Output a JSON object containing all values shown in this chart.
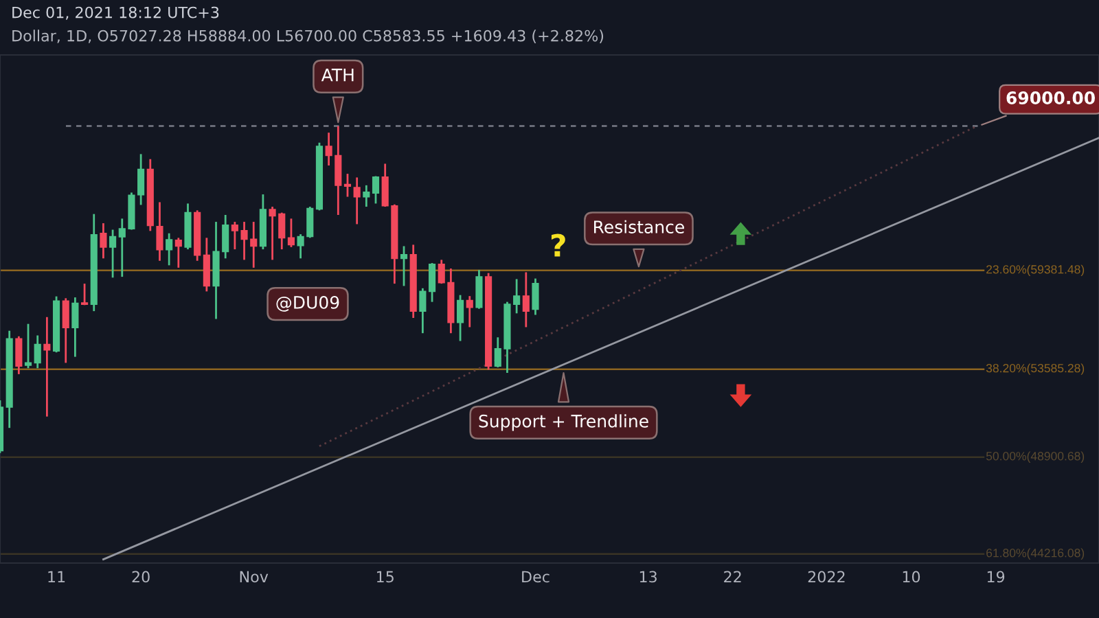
{
  "chart_data": {
    "type": "candlestick",
    "title": "Dec 01, 2021 18:12 UTC+3",
    "subtitle": "Dollar, 1D, O57027.28 H58884.00 L56700.00 C58583.55 +1609.43 (+2.82%)",
    "x": [
      "2021-10-05",
      "2021-10-06",
      "2021-10-07",
      "2021-10-08",
      "2021-10-09",
      "2021-10-10",
      "2021-10-11",
      "2021-10-12",
      "2021-10-13",
      "2021-10-14",
      "2021-10-15",
      "2021-10-16",
      "2021-10-17",
      "2021-10-18",
      "2021-10-19",
      "2021-10-20",
      "2021-10-21",
      "2021-10-22",
      "2021-10-23",
      "2021-10-24",
      "2021-10-25",
      "2021-10-26",
      "2021-10-27",
      "2021-10-28",
      "2021-10-29",
      "2021-10-30",
      "2021-10-31",
      "2021-11-01",
      "2021-11-02",
      "2021-11-03",
      "2021-11-04",
      "2021-11-05",
      "2021-11-06",
      "2021-11-07",
      "2021-11-08",
      "2021-11-09",
      "2021-11-10",
      "2021-11-11",
      "2021-11-12",
      "2021-11-13",
      "2021-11-14",
      "2021-11-15",
      "2021-11-16",
      "2021-11-17",
      "2021-11-18",
      "2021-11-19",
      "2021-11-20",
      "2021-11-21",
      "2021-11-22",
      "2021-11-23",
      "2021-11-24",
      "2021-11-25",
      "2021-11-26",
      "2021-11-27",
      "2021-11-28",
      "2021-11-29",
      "2021-11-30",
      "2021-12-01"
    ],
    "ohlc": [
      [
        49230,
        51880,
        49110,
        51510
      ],
      [
        51510,
        55770,
        50410,
        55310
      ],
      [
        55310,
        55450,
        53310,
        53760
      ],
      [
        53810,
        56170,
        53640,
        53940
      ],
      [
        53940,
        55500,
        53640,
        54980
      ],
      [
        54980,
        56570,
        51010,
        54670
      ],
      [
        54610,
        57800,
        54530,
        57520
      ],
      [
        57520,
        57690,
        53940,
        55950
      ],
      [
        55950,
        57740,
        54280,
        57390
      ],
      [
        57410,
        58570,
        57280,
        57330
      ],
      [
        57330,
        62970,
        56920,
        61630
      ],
      [
        61720,
        62370,
        60130,
        60840
      ],
      [
        60840,
        61950,
        58940,
        61510
      ],
      [
        61490,
        62670,
        58990,
        62010
      ],
      [
        62010,
        64390,
        61950,
        64210
      ],
      [
        64240,
        67020,
        63570,
        65970
      ],
      [
        65970,
        66670,
        61870,
        62220
      ],
      [
        62160,
        63750,
        59980,
        60670
      ],
      [
        60670,
        61720,
        59700,
        61310
      ],
      [
        61280,
        61430,
        59550,
        60900
      ],
      [
        60840,
        63660,
        60700,
        63060
      ],
      [
        63060,
        63210,
        59980,
        60330
      ],
      [
        60330,
        61430,
        58100,
        58430
      ],
      [
        58430,
        62460,
        56460,
        60560
      ],
      [
        60560,
        62910,
        60130,
        62250
      ],
      [
        62250,
        62460,
        60700,
        61890
      ],
      [
        61890,
        62460,
        60040,
        61340
      ],
      [
        61340,
        62460,
        59550,
        60900
      ],
      [
        60900,
        64270,
        60700,
        63270
      ],
      [
        63270,
        63450,
        60040,
        62850
      ],
      [
        62970,
        63060,
        60700,
        61430
      ],
      [
        61430,
        62670,
        60840,
        60990
      ],
      [
        60930,
        61660,
        60130,
        61510
      ],
      [
        61510,
        63450,
        61430,
        63330
      ],
      [
        63300,
        67820,
        63210,
        67560
      ],
      [
        67560,
        68530,
        66230,
        66920
      ],
      [
        66920,
        69000,
        62910,
        64880
      ],
      [
        64940,
        65660,
        64110,
        64820
      ],
      [
        64730,
        65410,
        62310,
        64110
      ],
      [
        64110,
        64880,
        63450,
        64420
      ],
      [
        64360,
        65500,
        63660,
        65440
      ],
      [
        65440,
        66350,
        63450,
        63510
      ],
      [
        63510,
        63600,
        58570,
        60130
      ],
      [
        60130,
        60900,
        58430,
        60360
      ],
      [
        60360,
        60990,
        56520,
        56920
      ],
      [
        56920,
        58290,
        55630,
        58100
      ],
      [
        58100,
        59840,
        57470,
        59760
      ],
      [
        59760,
        60040,
        58570,
        58630
      ],
      [
        58630,
        59500,
        55630,
        56250
      ],
      [
        56250,
        57880,
        55180,
        57550
      ],
      [
        57550,
        57820,
        55980,
        57140
      ],
      [
        57140,
        59410,
        57060,
        58990
      ],
      [
        58990,
        59220,
        53560,
        53760
      ],
      [
        53760,
        55390,
        53690,
        54740
      ],
      [
        54740,
        57470,
        53380,
        57330
      ],
      [
        57330,
        58850,
        56790,
        57820
      ],
      [
        57820,
        59270,
        55980,
        56920
      ],
      [
        57027.28,
        58884.0,
        56700.0,
        58583.55
      ]
    ],
    "colors": [
      "#4cc38a",
      "#4cc38a",
      "#f2495c",
      "#4cc38a",
      "#4cc38a",
      "#f2495c",
      "#4cc38a",
      "#f2495c",
      "#4cc38a",
      "#f2495c",
      "#4cc38a",
      "#f2495c",
      "#4cc38a",
      "#4cc38a",
      "#4cc38a",
      "#4cc38a",
      "#f2495c",
      "#f2495c",
      "#4cc38a",
      "#f2495c",
      "#4cc38a",
      "#f2495c",
      "#f2495c",
      "#4cc38a",
      "#4cc38a",
      "#f2495c",
      "#f2495c",
      "#f2495c",
      "#4cc38a",
      "#f2495c",
      "#f2495c",
      "#f2495c",
      "#4cc38a",
      "#4cc38a",
      "#4cc38a",
      "#f2495c",
      "#f2495c",
      "#f2495c",
      "#f2495c",
      "#4cc38a",
      "#4cc38a",
      "#f2495c",
      "#f2495c",
      "#4cc38a",
      "#f2495c",
      "#4cc38a",
      "#4cc38a",
      "#f2495c",
      "#f2495c",
      "#4cc38a",
      "#f2495c",
      "#4cc38a",
      "#f2495c",
      "#4cc38a",
      "#4cc38a",
      "#4cc38a",
      "#f2495c",
      "#4cc38a"
    ],
    "series": [
      {
        "type": "line",
        "x": [
          "2021-10-16",
          "2022-01-30"
        ],
        "values": [
          43970,
          68160
        ],
        "color": "#9598a1",
        "line_style": "solid"
      },
      {
        "type": "line",
        "x": [
          "2021-11-08",
          "2022-01-17"
        ],
        "values": [
          49460,
          69000
        ],
        "color": "#5a3a40",
        "line_style": "dotted"
      }
    ],
    "ref_lines": [
      {
        "axis": "y",
        "value": 69000,
        "label": "69000.00",
        "color": "#787b86",
        "line_style": "dashed"
      },
      {
        "axis": "y",
        "value": 59381.48,
        "label": "23.60%(59381.48)",
        "color": "#8c6420",
        "line_style": "solid"
      },
      {
        "axis": "y",
        "value": 53585.28,
        "label": "38.20%(53585.28)",
        "color": "#8c6420",
        "line_style": "solid"
      },
      {
        "axis": "y",
        "value": 48900.68,
        "label": "50.00%(48900.68)",
        "color": "#3a3424",
        "line_style": "solid"
      },
      {
        "axis": "y",
        "value": 44216.08,
        "label": "61.80%(44216.08)",
        "color": "#3a3424",
        "line_style": "solid"
      }
    ],
    "annotations": [
      {
        "text": "ATH",
        "x": "2021-11-10",
        "y": 69000
      },
      {
        "text": "Resistance",
        "x": "2021-12-12",
        "y": 59381.48
      },
      {
        "text": "Support + Trendline",
        "x": "2021-12-04",
        "y": 53585.28
      },
      "?",
      "@DU09"
    ],
    "xlim": [
      "2021-10-05",
      "2022-01-30"
    ],
    "ylim": [
      43800,
      74300
    ],
    "log": "y",
    "xticks": [
      {
        "value": "2021-10-11",
        "label": "11"
      },
      {
        "value": "2021-10-20",
        "label": "20"
      },
      {
        "value": "2021-11-01",
        "label": "Nov"
      },
      {
        "value": "2021-11-15",
        "label": "15"
      },
      {
        "value": "2021-12-01",
        "label": "Dec"
      },
      {
        "value": "2021-12-13",
        "label": "13"
      },
      {
        "value": "2021-12-22",
        "label": "22"
      },
      {
        "value": "2022-01-01",
        "label": "2022"
      },
      {
        "value": "2022-01-10",
        "label": "10"
      },
      {
        "value": "2022-01-19",
        "label": "19"
      }
    ],
    "tick_labels": "x",
    "grid": false
  }
}
